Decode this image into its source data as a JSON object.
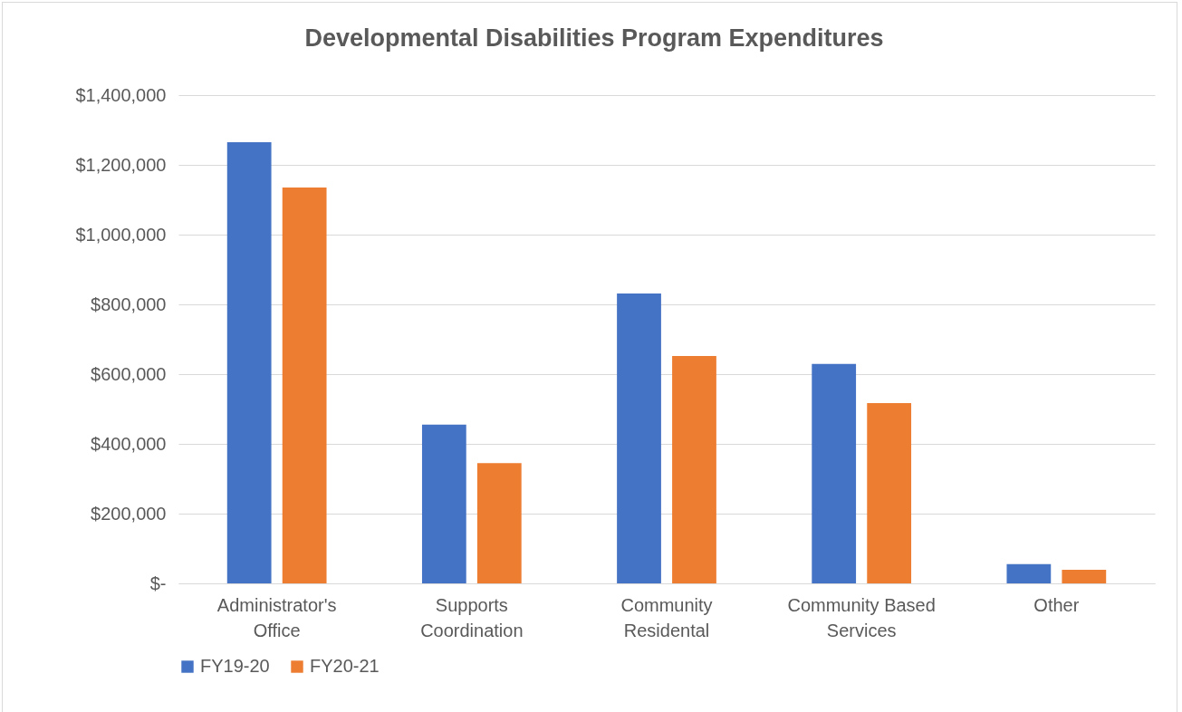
{
  "chart_data": {
    "type": "bar",
    "title": "Developmental Disabilities Program Expenditures",
    "categories": [
      "Administrator's Office",
      "Supports Coordination",
      "Community Residental",
      "Community Based Services",
      "Other"
    ],
    "series": [
      {
        "name": "FY19-20",
        "color": "#4472c4",
        "values": [
          1265000,
          455000,
          831000,
          629000,
          55000
        ]
      },
      {
        "name": "FY20-21",
        "color": "#ed7d31",
        "values": [
          1135000,
          345000,
          652000,
          517000,
          39000
        ]
      }
    ],
    "ylim": [
      0,
      1400000
    ],
    "yticks": [
      {
        "value": 0,
        "label": "$-"
      },
      {
        "value": 200000,
        "label": "$200,000"
      },
      {
        "value": 400000,
        "label": "$400,000"
      },
      {
        "value": 600000,
        "label": "$600,000"
      },
      {
        "value": 800000,
        "label": "$800,000"
      },
      {
        "value": 1000000,
        "label": "$1,000,000"
      },
      {
        "value": 1200000,
        "label": "$1,200,000"
      },
      {
        "value": 1400000,
        "label": "$1,400,000"
      }
    ],
    "grid": "y",
    "legend": "bottom"
  }
}
